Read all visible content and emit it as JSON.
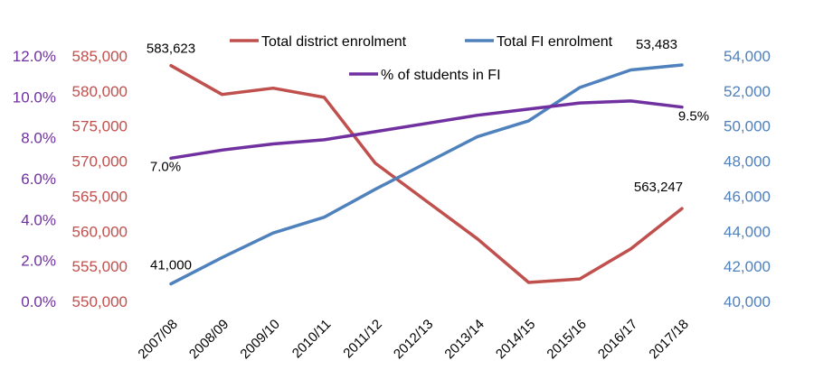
{
  "chart_data": {
    "type": "line",
    "categories": [
      "2007/08",
      "2008/09",
      "2009/10",
      "2010/11",
      "2011/12",
      "2012/13",
      "2013/14",
      "2014/15",
      "2015/16",
      "2016/17",
      "2017/18"
    ],
    "series": [
      {
        "name": "Total district enrolment",
        "axis": "left-inner",
        "color": "#C0504D",
        "values": [
          583623,
          579500,
          580400,
          579100,
          569700,
          564300,
          558900,
          552700,
          553200,
          557500,
          563247
        ]
      },
      {
        "name": "Total FI enrolment",
        "axis": "right",
        "color": "#4F81BD",
        "values": [
          41000,
          42500,
          43900,
          44800,
          46400,
          47900,
          49400,
          50300,
          52200,
          53200,
          53483
        ]
      },
      {
        "name": "% of students in FI",
        "axis": "left-outer",
        "color": "#7030A0",
        "values": [
          7.0,
          7.4,
          7.7,
          7.9,
          8.3,
          8.7,
          9.1,
          9.4,
          9.7,
          9.8,
          9.5
        ]
      }
    ],
    "axes": {
      "left_outer": {
        "min": 0,
        "max": 12,
        "step": 2,
        "color": "#7030A0",
        "ticks": [
          "0.0%",
          "2.0%",
          "4.0%",
          "6.0%",
          "8.0%",
          "10.0%",
          "12.0%"
        ]
      },
      "left_inner": {
        "min": 550000,
        "max": 585000,
        "step": 5000,
        "color": "#C0504D",
        "ticks": [
          "550,000",
          "555,000",
          "560,000",
          "565,000",
          "570,000",
          "575,000",
          "580,000",
          "585,000"
        ]
      },
      "right": {
        "min": 40000,
        "max": 54000,
        "step": 2000,
        "color": "#4F81BD",
        "ticks": [
          "40,000",
          "42,000",
          "44,000",
          "46,000",
          "48,000",
          "50,000",
          "52,000",
          "54,000"
        ]
      }
    },
    "data_labels": [
      {
        "series": 0,
        "index": 0,
        "text": "583,623"
      },
      {
        "series": 0,
        "index": 10,
        "text": "563,247"
      },
      {
        "series": 1,
        "index": 0,
        "text": "41,000"
      },
      {
        "series": 1,
        "index": 10,
        "text": "53,483"
      },
      {
        "series": 2,
        "index": 0,
        "text": "7.0%"
      },
      {
        "series": 2,
        "index": 10,
        "text": "9.5%"
      }
    ],
    "legend": {
      "position": "top"
    },
    "grid": false
  }
}
